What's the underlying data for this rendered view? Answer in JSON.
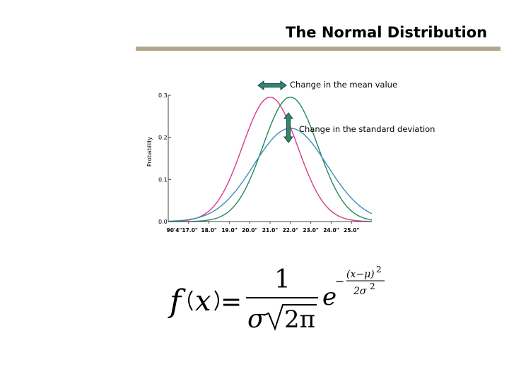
{
  "slide": {
    "title": "The Normal Distribution",
    "rule_color": "#b5a88a"
  },
  "annotations": {
    "mean": "Change in the mean value",
    "sd": "Change in the standard deviation",
    "arrow_color": "#2e8b57"
  },
  "formula": {
    "f": "f",
    "x": "x",
    "eq": "=",
    "one": "1",
    "sigma": "σ",
    "two_pi": "2π",
    "e": "e",
    "exp_minus": "−",
    "exp_num": "(x−μ)",
    "exp_num_pow": "2",
    "exp_den": "2σ",
    "exp_den_pow": "2"
  },
  "chart_data": {
    "type": "line",
    "ylabel": "Probability",
    "ylim": [
      0,
      0.3
    ],
    "yticks": [
      0,
      0.1,
      0.2,
      0.3
    ],
    "ytick_labels": [
      "0.0",
      "0.1",
      "0.2",
      "0.3"
    ],
    "xlim": [
      16.0,
      26.0
    ],
    "xticks": [
      17.0,
      18.0,
      19.0,
      20.0,
      21.0,
      22.0,
      23.0,
      24.0,
      25.0
    ],
    "xtick_labels": [
      "90'4\"17.0\"",
      "18.0\"",
      "19.0\"",
      "20.0\"",
      "21.0\"",
      "22.0\"",
      "23.0\"",
      "24.0\"",
      "25.0\""
    ],
    "series": [
      {
        "mean": 21.0,
        "sd": 1.35,
        "color": "#d63a8a"
      },
      {
        "mean": 22.0,
        "sd": 1.35,
        "color": "#1f8a5a"
      },
      {
        "mean": 22.0,
        "sd": 1.8,
        "color": "#3a8fb8"
      }
    ]
  }
}
